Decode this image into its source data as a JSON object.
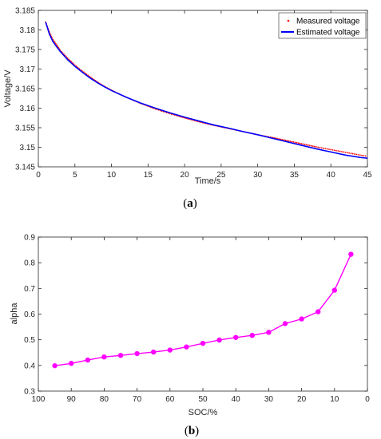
{
  "chart_data": [
    {
      "type": "line",
      "panel_label": "(a)",
      "xlabel": "Time/s",
      "ylabel": "Voltage/V",
      "xlim": [
        0,
        45
      ],
      "ylim": [
        3.145,
        3.185
      ],
      "xticks": [
        0,
        5,
        10,
        15,
        20,
        25,
        30,
        35,
        40,
        45
      ],
      "xtick_labels": [
        "0",
        "5",
        "10",
        "15",
        "20",
        "25",
        "30",
        "35",
        "40",
        "45"
      ],
      "yticks": [
        3.145,
        3.15,
        3.155,
        3.16,
        3.165,
        3.17,
        3.175,
        3.18,
        3.185
      ],
      "ytick_labels": [
        "3.145",
        "3.15",
        "3.155",
        "3.16",
        "3.165",
        "3.17",
        "3.175",
        "3.18",
        "3.185"
      ],
      "legend_position": "top-right",
      "grid": false,
      "series": [
        {
          "name": "Measured voltage",
          "style": "dotted",
          "color": "#ff0000",
          "x": [
            1,
            1.5,
            2,
            2.5,
            3,
            4,
            5,
            6,
            7,
            8,
            9,
            10,
            12,
            14,
            16,
            18,
            20,
            22,
            24,
            26,
            28,
            30,
            32,
            34,
            36,
            38,
            40,
            42,
            44,
            45
          ],
          "y": [
            3.182,
            3.1795,
            3.1775,
            3.1762,
            3.1748,
            3.1728,
            3.171,
            3.1695,
            3.1681,
            3.1668,
            3.1656,
            3.1646,
            3.1628,
            3.1612,
            3.1598,
            3.1586,
            3.1575,
            3.1565,
            3.1556,
            3.1548,
            3.154,
            3.1532,
            3.1525,
            3.1517,
            3.1509,
            3.1501,
            3.1494,
            3.1487,
            3.148,
            3.1477
          ]
        },
        {
          "name": "Estimated voltage",
          "style": "solid",
          "color": "#0000ff",
          "x": [
            1,
            1.5,
            2,
            2.5,
            3,
            4,
            5,
            6,
            7,
            8,
            9,
            10,
            12,
            14,
            16,
            18,
            20,
            22,
            24,
            26,
            28,
            30,
            32,
            34,
            36,
            38,
            40,
            42,
            44,
            45
          ],
          "y": [
            3.182,
            3.179,
            3.177,
            3.1757,
            3.1745,
            3.1724,
            3.1707,
            3.1692,
            3.1678,
            3.1666,
            3.1655,
            3.1645,
            3.1628,
            3.1613,
            3.16,
            3.1588,
            3.1577,
            3.1567,
            3.1557,
            3.1549,
            3.154,
            3.1532,
            3.1523,
            3.1514,
            3.1505,
            3.1496,
            3.1488,
            3.148,
            3.1474,
            3.1472
          ]
        }
      ]
    },
    {
      "type": "line",
      "panel_label": "(b)",
      "xlabel": "SOC/%",
      "ylabel": "alpha",
      "xlim": [
        100,
        0
      ],
      "ylim": [
        0.3,
        0.9
      ],
      "x_reversed": true,
      "xticks": [
        100,
        90,
        80,
        70,
        60,
        50,
        40,
        30,
        20,
        10,
        0
      ],
      "xtick_labels": [
        "100",
        "90",
        "80",
        "70",
        "60",
        "50",
        "40",
        "30",
        "20",
        "10",
        "0"
      ],
      "yticks": [
        0.3,
        0.4,
        0.5,
        0.6,
        0.7,
        0.8,
        0.9
      ],
      "ytick_labels": [
        "0.3",
        "0.4",
        "0.5",
        "0.6",
        "0.7",
        "0.8",
        "0.9"
      ],
      "grid": false,
      "series": [
        {
          "color": "#ff00ff",
          "marker": "circle",
          "x": [
            95,
            90,
            85,
            80,
            75,
            70,
            65,
            60,
            55,
            50,
            45,
            40,
            35,
            30,
            25,
            20,
            15,
            10,
            5
          ],
          "y": [
            0.399,
            0.408,
            0.421,
            0.433,
            0.439,
            0.446,
            0.452,
            0.46,
            0.472,
            0.486,
            0.499,
            0.509,
            0.517,
            0.529,
            0.563,
            0.581,
            0.609,
            0.693,
            0.833
          ]
        }
      ]
    }
  ]
}
